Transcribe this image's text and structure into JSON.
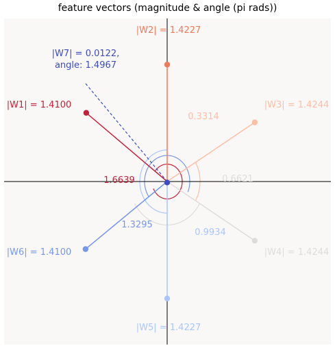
{
  "chart_data": {
    "type": "vector-plot",
    "title": "feature vectors (magnitude & angle (pi rads))",
    "xlim": [
      -1.45,
      1.45
    ],
    "ylim": [
      -1.45,
      1.45
    ],
    "background": "#faf8f7",
    "vectors": [
      {
        "id": "W1",
        "magnitude": 1.41,
        "angle": 0.7981,
        "color": "#c3213a",
        "label": "|W1| = 1.4100",
        "angle_label": "1.6639",
        "shown_angle": 1.6639
      },
      {
        "id": "W2",
        "magnitude": 1.4227,
        "angle": 0.5,
        "color": "#ee7a5a",
        "label": "|W2| = 1.4227",
        "angle_label": "",
        "shown_angle": null
      },
      {
        "id": "W3",
        "magnitude": 1.4244,
        "angle": 0.1686,
        "color": "#fbbfa3",
        "label": "|W3| = 1.4244",
        "angle_label": "0.3314",
        "shown_angle": 0.3314
      },
      {
        "id": "W4",
        "magnitude": 1.4244,
        "angle": -0.1686,
        "color": "#dedcdb",
        "label": "|W4| = 1.4244",
        "angle_label": "0.6621",
        "shown_angle": 0.6621
      },
      {
        "id": "W5",
        "magnitude": 1.4227,
        "angle": -0.5,
        "color": "#a9c6fc",
        "label": "|W5| = 1.4227",
        "angle_label": "0.9934",
        "shown_angle": 0.9934
      },
      {
        "id": "W6",
        "magnitude": 1.41,
        "angle": -0.8019,
        "color": "#7598ea",
        "label": "|W6| = 1.4100",
        "angle_label": "1.3295",
        "shown_angle": 1.3295
      },
      {
        "id": "W7",
        "magnitude": 0.0122,
        "angle": 1.4967,
        "color": "#3a4cc0",
        "label": "|W7| = 0.0122,\nangle: 1.4967",
        "angle_label": "",
        "shown_angle": null
      }
    ]
  }
}
